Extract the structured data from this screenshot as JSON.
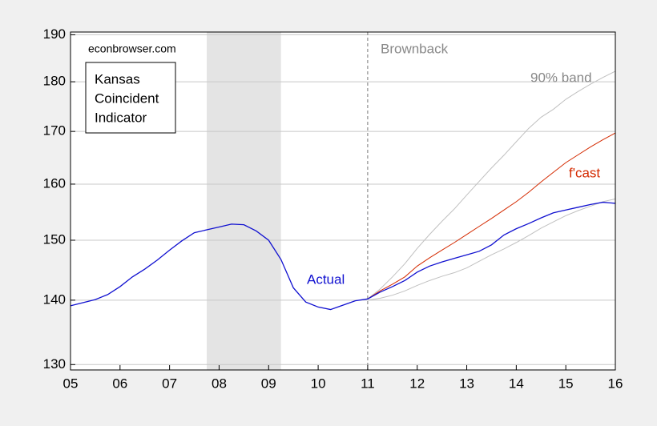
{
  "chart_data": {
    "type": "line",
    "source": "econbrowser.com",
    "box_text": [
      "Kansas",
      "Coincident",
      "Indicator"
    ],
    "log_scale": true,
    "grid": true,
    "xlim": [
      2005,
      2016
    ],
    "xticks": [
      {
        "value": 2005,
        "label": "05"
      },
      {
        "value": 2006,
        "label": "06"
      },
      {
        "value": 2007,
        "label": "07"
      },
      {
        "value": 2008,
        "label": "08"
      },
      {
        "value": 2009,
        "label": "09"
      },
      {
        "value": 2010,
        "label": "10"
      },
      {
        "value": 2011,
        "label": "11"
      },
      {
        "value": 2012,
        "label": "12"
      },
      {
        "value": 2013,
        "label": "13"
      },
      {
        "value": 2014,
        "label": "14"
      },
      {
        "value": 2015,
        "label": "15"
      },
      {
        "value": 2016,
        "label": "16"
      }
    ],
    "ylim": [
      129.2,
      190.6
    ],
    "yticks": [
      130,
      140,
      150,
      160,
      170,
      180,
      190
    ],
    "shaded": [
      2007.75,
      2009.25
    ],
    "vline": {
      "x": 2011,
      "label": "Brownback"
    },
    "x": [
      2005,
      2005.25,
      2005.5,
      2005.75,
      2006,
      2006.25,
      2006.5,
      2006.75,
      2007,
      2007.25,
      2007.5,
      2007.75,
      2008,
      2008.25,
      2008.5,
      2008.75,
      2009,
      2009.25,
      2009.5,
      2009.75,
      2010,
      2010.25,
      2010.5,
      2010.75,
      2011,
      2011.25,
      2011.5,
      2011.75,
      2012,
      2012.25,
      2012.5,
      2012.75,
      2013,
      2013.25,
      2013.5,
      2013.75,
      2014,
      2014.25,
      2014.5,
      2014.75,
      2015,
      2015.25,
      2015.5,
      2015.75,
      2016
    ],
    "series": [
      {
        "name": "90% band",
        "color": "#c0c0c0",
        "values": [
          null,
          null,
          null,
          null,
          null,
          null,
          null,
          null,
          null,
          null,
          null,
          null,
          null,
          null,
          null,
          null,
          null,
          null,
          null,
          null,
          null,
          null,
          null,
          null,
          140.2,
          141.8,
          143.8,
          146.0,
          148.6,
          151.0,
          153.3,
          155.5,
          158.0,
          160.5,
          163.0,
          165.4,
          168.0,
          170.6,
          172.8,
          174.4,
          176.4,
          178.0,
          179.5,
          180.9,
          182.2
        ]
      },
      {
        "color": "#c0c0c0",
        "values": [
          null,
          null,
          null,
          null,
          null,
          null,
          null,
          null,
          null,
          null,
          null,
          null,
          null,
          null,
          null,
          null,
          null,
          null,
          null,
          null,
          null,
          null,
          null,
          null,
          140.0,
          140.3,
          140.8,
          141.5,
          142.4,
          143.2,
          143.9,
          144.5,
          145.3,
          146.4,
          147.5,
          148.5,
          149.6,
          150.8,
          152.1,
          153.2,
          154.3,
          155.2,
          156.0,
          156.8,
          157.3
        ]
      },
      {
        "name": "f'cast",
        "color": "#d42a00",
        "values": [
          null,
          null,
          null,
          null,
          null,
          null,
          null,
          null,
          null,
          null,
          null,
          null,
          null,
          null,
          null,
          null,
          null,
          null,
          null,
          null,
          null,
          null,
          null,
          null,
          140.2,
          141.5,
          142.6,
          143.8,
          145.6,
          147.0,
          148.3,
          149.6,
          151.0,
          152.4,
          153.8,
          155.3,
          156.8,
          158.5,
          160.4,
          162.2,
          164.0,
          165.5,
          167.0,
          168.4,
          169.7
        ]
      },
      {
        "name": "Actual",
        "color": "#1010d0",
        "values": [
          139.1,
          139.6,
          140.1,
          140.9,
          142.2,
          143.8,
          145.1,
          146.6,
          148.3,
          149.9,
          151.3,
          151.8,
          152.3,
          152.8,
          152.7,
          151.6,
          150.0,
          146.7,
          142.0,
          139.7,
          138.9,
          138.5,
          139.2,
          139.9,
          140.2,
          141.3,
          142.2,
          143.2,
          144.6,
          145.6,
          146.3,
          146.9,
          147.5,
          148.1,
          149.2,
          150.9,
          152.0,
          152.9,
          153.9,
          154.8,
          155.3,
          155.8,
          156.3,
          156.7,
          156.5
        ]
      }
    ]
  }
}
